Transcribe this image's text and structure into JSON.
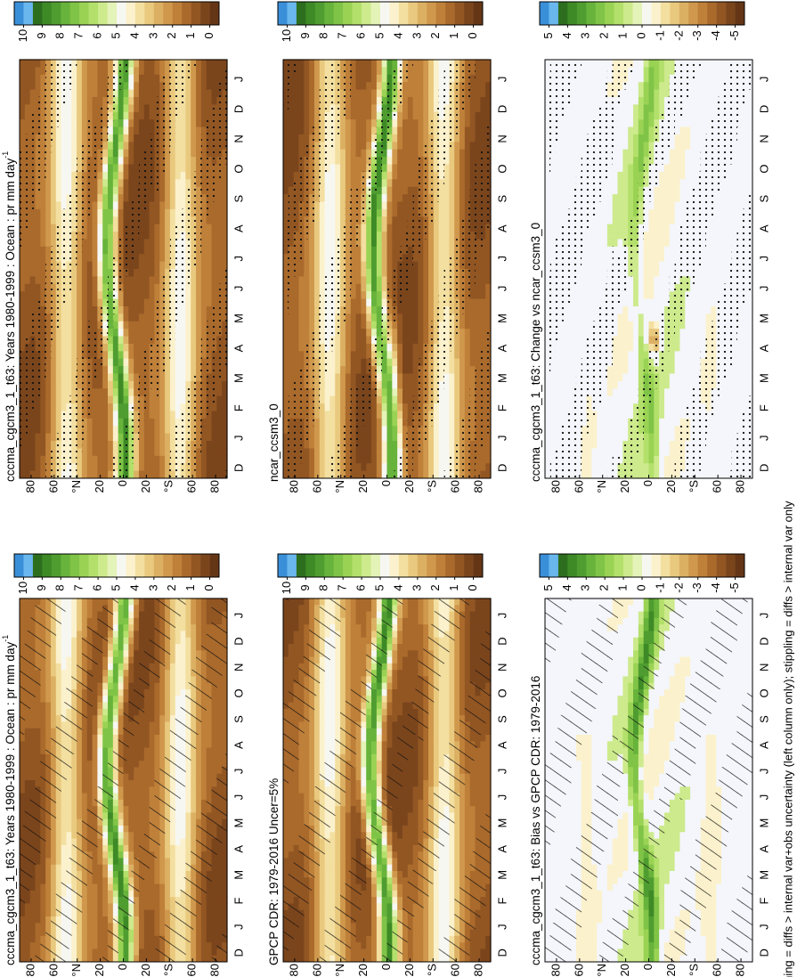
{
  "panels": [
    {
      "title": "cccma_cgcm3_1_t63: Years 1980-1999 : Ocean : pr mm day",
      "title_superscript": "-1",
      "colorbar_labels": [
        10,
        9,
        8,
        7,
        6,
        5,
        4,
        3,
        2,
        1,
        0
      ]
    },
    {
      "title": "cccma_cgcm3_1_t63: Years 1980-1999 : Ocean : pr mm day",
      "title_superscript": "-1",
      "colorbar_labels": [
        10,
        9,
        8,
        7,
        6,
        5,
        4,
        3,
        2,
        1,
        0
      ]
    },
    {
      "title": "GPCP CDR: 1979-2016 Uncer=5%",
      "colorbar_labels": [
        10,
        9,
        8,
        7,
        6,
        5,
        4,
        3,
        2,
        1,
        0
      ]
    },
    {
      "title": "ncar_ccsm3_0",
      "colorbar_labels": [
        10,
        9,
        8,
        7,
        6,
        5,
        4,
        3,
        2,
        1,
        0
      ]
    },
    {
      "title": "cccma_cgcm3_1_t63: Bias vs GPCP CDR: 1979-2016",
      "colorbar_labels": [
        5,
        4,
        3,
        2,
        1,
        0,
        -1,
        -2,
        -3,
        -4,
        -5
      ]
    },
    {
      "title": "cccma_cgcm3_1_t63: Change vs ncar_ccsm3_0",
      "colorbar_labels": [
        5,
        4,
        3,
        2,
        1,
        0,
        -1,
        -2,
        -3,
        -4,
        -5
      ]
    }
  ],
  "months": [
    "D",
    "J",
    "F",
    "M",
    "A",
    "M",
    "J",
    "J",
    "A",
    "S",
    "O",
    "N",
    "D",
    "J"
  ],
  "lat_range": [
    90,
    -90
  ],
  "lat_ticks": [
    80,
    60,
    {
      "value": 40,
      "label": "°N"
    },
    20,
    0,
    {
      "value": -20,
      "label": "20"
    },
    {
      "value": -40,
      "label": "°S"
    },
    {
      "value": -60,
      "label": "60"
    },
    {
      "value": -80,
      "label": "80"
    }
  ],
  "colorbar_colors": [
    "#3a8fd9",
    "#6ab7ee",
    "#2d6e1e",
    "#3d8a26",
    "#4f9d30",
    "#67b33b",
    "#80c447",
    "#9ad354",
    "#b3e06b",
    "#cdea8c",
    "#e4f3b8",
    "#f7f7f2",
    "#fbf1cc",
    "#f3dfa0",
    "#e9c97e",
    "#dcb063",
    "#cf984c",
    "#bf803a",
    "#aa6a2c",
    "#925623",
    "#7b451c",
    "#653616"
  ],
  "footer": "hatching = diffs > internal var+obs uncertainty (left column only); stippling = diffs > internal var only"
}
